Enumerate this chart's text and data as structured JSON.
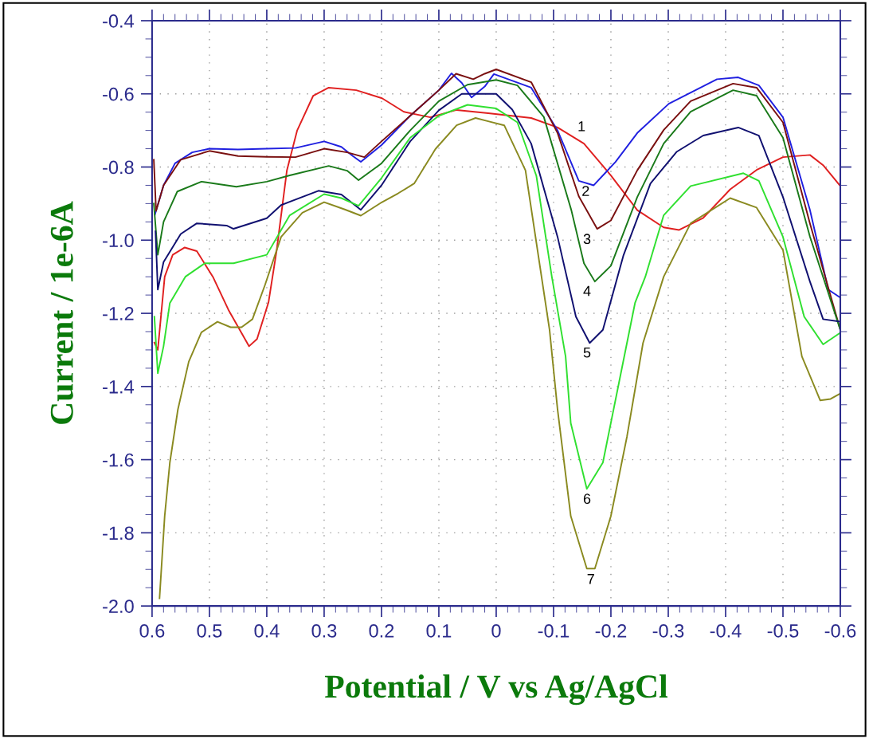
{
  "chart_data": {
    "type": "line",
    "xlabel": "Potential / V vs Ag/AgCl",
    "ylabel": "Current / 1e-6A",
    "xlim": [
      0.6,
      -0.6
    ],
    "ylim": [
      -2.0,
      -0.4
    ],
    "xticks": [
      0.6,
      0.5,
      0.4,
      0.3,
      0.2,
      0.1,
      0,
      -0.1,
      -0.2,
      -0.3,
      -0.4,
      -0.5,
      -0.6
    ],
    "yticks": [
      {
        "value": -2,
        "label": "-2.0"
      },
      -1.8,
      -1.6,
      -1.4,
      -1.2,
      {
        "value": -1,
        "label": "-1.0"
      },
      -0.8,
      -0.6,
      -0.4
    ],
    "grid": true,
    "legend": false,
    "marker": "none",
    "line_style": "solid",
    "series": [
      {
        "color": "#e02020",
        "x": [
          0.596,
          0.59,
          0.578,
          0.564,
          0.543,
          0.522,
          0.494,
          0.467,
          0.431,
          0.417,
          0.397,
          0.383,
          0.365,
          0.347,
          0.319,
          0.292,
          0.244,
          0.199,
          0.161,
          0.115,
          0.069,
          0.014,
          -0.061,
          -0.107,
          -0.153,
          -0.2,
          -0.246,
          -0.292,
          -0.319,
          -0.361,
          -0.408,
          -0.454,
          -0.5,
          -0.547,
          -0.57,
          -0.6
        ],
        "values": [
          -1.28,
          -1.3,
          -1.1,
          -1.04,
          -1.02,
          -1.03,
          -1.1,
          -1.19,
          -1.29,
          -1.27,
          -1.17,
          -1.03,
          -0.81,
          -0.7,
          -0.605,
          -0.583,
          -0.59,
          -0.612,
          -0.649,
          -0.664,
          -0.644,
          -0.653,
          -0.666,
          -0.692,
          -0.736,
          -0.823,
          -0.918,
          -0.965,
          -0.972,
          -0.939,
          -0.861,
          -0.808,
          -0.773,
          -0.767,
          -0.795,
          -0.852
        ]
      },
      {
        "color": "#2020e0",
        "x": [
          0.595,
          0.58,
          0.56,
          0.53,
          0.5,
          0.45,
          0.4,
          0.35,
          0.3,
          0.27,
          0.25,
          0.236,
          0.2,
          0.15,
          0.1,
          0.078,
          0.06,
          0.043,
          0.02,
          0.004,
          -0.061,
          -0.107,
          -0.144,
          -0.17,
          -0.208,
          -0.246,
          -0.301,
          -0.385,
          -0.422,
          -0.458,
          -0.5,
          -0.547,
          -0.579,
          -0.6
        ],
        "values": [
          -0.93,
          -0.85,
          -0.79,
          -0.76,
          -0.75,
          -0.752,
          -0.75,
          -0.748,
          -0.73,
          -0.745,
          -0.77,
          -0.786,
          -0.74,
          -0.66,
          -0.59,
          -0.544,
          -0.57,
          -0.61,
          -0.58,
          -0.546,
          -0.583,
          -0.7,
          -0.838,
          -0.85,
          -0.786,
          -0.707,
          -0.627,
          -0.56,
          -0.555,
          -0.577,
          -0.664,
          -0.917,
          -1.135,
          -1.157
        ]
      },
      {
        "color": "#7a1010",
        "x": [
          0.597,
          0.593,
          0.58,
          0.55,
          0.5,
          0.45,
          0.4,
          0.35,
          0.3,
          0.26,
          0.23,
          0.2,
          0.15,
          0.1,
          0.07,
          0.04,
          0.02,
          0.0,
          -0.061,
          -0.107,
          -0.144,
          -0.176,
          -0.2,
          -0.246,
          -0.292,
          -0.339,
          -0.413,
          -0.454,
          -0.5,
          -0.547,
          -0.6
        ],
        "values": [
          -0.78,
          -0.92,
          -0.85,
          -0.78,
          -0.756,
          -0.77,
          -0.772,
          -0.773,
          -0.75,
          -0.76,
          -0.773,
          -0.73,
          -0.66,
          -0.59,
          -0.545,
          -0.56,
          -0.545,
          -0.533,
          -0.568,
          -0.707,
          -0.88,
          -0.969,
          -0.946,
          -0.809,
          -0.699,
          -0.62,
          -0.572,
          -0.583,
          -0.678,
          -0.954,
          -1.245
        ]
      },
      {
        "color": "#1a7a1a",
        "x": [
          0.597,
          0.59,
          0.58,
          0.556,
          0.514,
          0.453,
          0.4,
          0.36,
          0.292,
          0.26,
          0.24,
          0.2,
          0.15,
          0.1,
          0.05,
          0.0,
          -0.037,
          -0.083,
          -0.131,
          -0.153,
          -0.172,
          -0.2,
          -0.246,
          -0.292,
          -0.339,
          -0.413,
          -0.454,
          -0.5,
          -0.547,
          -0.6
        ],
        "values": [
          -0.9,
          -1.04,
          -0.95,
          -0.867,
          -0.84,
          -0.854,
          -0.84,
          -0.823,
          -0.797,
          -0.81,
          -0.836,
          -0.79,
          -0.7,
          -0.62,
          -0.575,
          -0.562,
          -0.577,
          -0.663,
          -0.918,
          -1.063,
          -1.113,
          -1.07,
          -0.882,
          -0.736,
          -0.649,
          -0.59,
          -0.605,
          -0.72,
          -0.99,
          -1.245
        ]
      },
      {
        "color": "#101070",
        "x": [
          0.594,
          0.59,
          0.58,
          0.55,
          0.522,
          0.47,
          0.458,
          0.4,
          0.375,
          0.31,
          0.27,
          0.236,
          0.2,
          0.15,
          0.1,
          0.06,
          0.0,
          -0.028,
          -0.061,
          -0.107,
          -0.139,
          -0.163,
          -0.186,
          -0.222,
          -0.269,
          -0.315,
          -0.361,
          -0.422,
          -0.458,
          -0.5,
          -0.547,
          -0.57,
          -0.6
        ],
        "values": [
          -0.976,
          -1.135,
          -1.06,
          -0.983,
          -0.954,
          -0.96,
          -0.969,
          -0.94,
          -0.904,
          -0.865,
          -0.875,
          -0.917,
          -0.85,
          -0.73,
          -0.645,
          -0.6,
          -0.6,
          -0.643,
          -0.736,
          -0.991,
          -1.209,
          -1.281,
          -1.245,
          -1.041,
          -0.845,
          -0.758,
          -0.714,
          -0.692,
          -0.714,
          -0.882,
          -1.113,
          -1.216,
          -1.223
        ]
      },
      {
        "color": "#30e030",
        "x": [
          0.596,
          0.59,
          0.58,
          0.569,
          0.542,
          0.508,
          0.458,
          0.4,
          0.36,
          0.3,
          0.27,
          0.24,
          0.2,
          0.15,
          0.1,
          0.05,
          0.0,
          -0.037,
          -0.07,
          -0.097,
          -0.121,
          -0.13,
          -0.158,
          -0.186,
          -0.214,
          -0.242,
          -0.26,
          -0.292,
          -0.339,
          -0.431,
          -0.458,
          -0.5,
          -0.537,
          -0.57,
          -0.6
        ],
        "values": [
          -1.209,
          -1.364,
          -1.29,
          -1.172,
          -1.1,
          -1.063,
          -1.063,
          -1.04,
          -0.932,
          -0.874,
          -0.885,
          -0.906,
          -0.83,
          -0.72,
          -0.66,
          -0.63,
          -0.64,
          -0.678,
          -0.824,
          -1.1,
          -1.318,
          -1.5,
          -1.68,
          -1.608,
          -1.39,
          -1.172,
          -1.1,
          -0.932,
          -0.852,
          -0.817,
          -0.838,
          -0.991,
          -1.209,
          -1.285,
          -1.253
        ]
      },
      {
        "color": "#8a8a20",
        "x": [
          0.587,
          0.578,
          0.569,
          0.555,
          0.536,
          0.514,
          0.486,
          0.463,
          0.444,
          0.425,
          0.403,
          0.375,
          0.338,
          0.3,
          0.264,
          0.236,
          0.199,
          0.171,
          0.143,
          0.106,
          0.069,
          0.036,
          0.014,
          -0.014,
          -0.051,
          -0.093,
          -0.107,
          -0.13,
          -0.158,
          -0.172,
          -0.2,
          -0.228,
          -0.256,
          -0.292,
          -0.339,
          -0.408,
          -0.454,
          -0.5,
          -0.533,
          -0.565,
          -0.583,
          -0.6
        ],
        "values": [
          -1.979,
          -1.754,
          -1.608,
          -1.463,
          -1.332,
          -1.252,
          -1.223,
          -1.238,
          -1.238,
          -1.216,
          -1.122,
          -0.991,
          -0.925,
          -0.896,
          -0.916,
          -0.933,
          -0.896,
          -0.872,
          -0.845,
          -0.751,
          -0.686,
          -0.666,
          -0.675,
          -0.686,
          -0.809,
          -1.245,
          -1.463,
          -1.754,
          -1.898,
          -1.898,
          -1.754,
          -1.537,
          -1.281,
          -1.1,
          -0.954,
          -0.885,
          -0.911,
          -1.027,
          -1.318,
          -1.438,
          -1.434,
          -1.419
        ]
      }
    ],
    "annotations": [
      "1",
      "2",
      "3",
      "4",
      "5",
      "6",
      "7"
    ]
  }
}
